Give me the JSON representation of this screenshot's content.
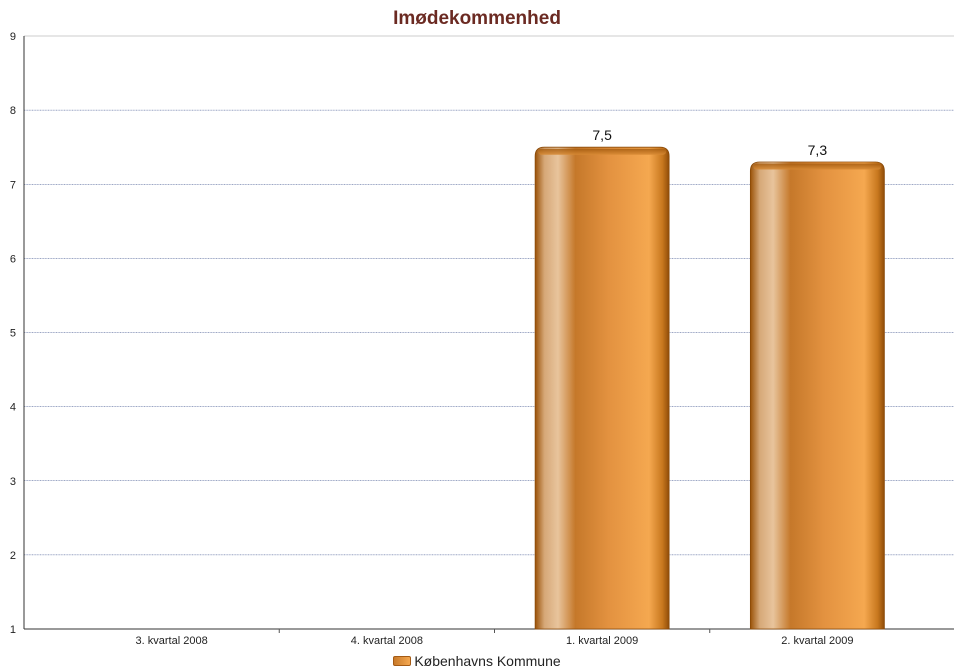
{
  "chart_data": {
    "type": "bar",
    "title": "Imødekommenhed",
    "xlabel": "",
    "ylabel": "",
    "categories": [
      "3. kvartal 2008",
      "4. kvartal 2008",
      "1. kvartal 2009",
      "2. kvartal 2009"
    ],
    "series": [
      {
        "name": "Københavns Kommune",
        "values": [
          null,
          null,
          7.5,
          7.3
        ],
        "value_labels": [
          null,
          null,
          "7,5",
          "7,3"
        ],
        "color": "#e08a2c"
      }
    ],
    "ylim": [
      1,
      9
    ],
    "yticks": [
      "1",
      "2",
      "3",
      "4",
      "5",
      "6",
      "7",
      "8",
      "9"
    ],
    "grid": true,
    "legend_position": "bottom"
  }
}
